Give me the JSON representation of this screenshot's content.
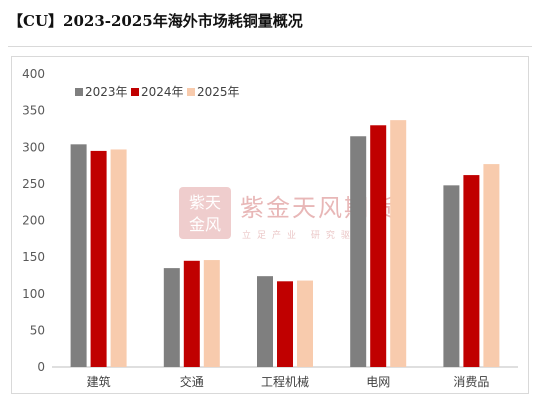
{
  "header": {
    "title": "【CU】2023-2025年海外市场耗铜量概况"
  },
  "watermark": {
    "name": "紫金天风期货",
    "slogan": "立足产业 研究驱动",
    "seal_top": "紫天",
    "seal_bottom": "金风"
  },
  "chart_data": {
    "type": "bar",
    "title": "【CU】2023-2025年海外市场耗铜量概况",
    "xlabel": "",
    "ylabel": "",
    "ylim": [
      0,
      400
    ],
    "yticks": [
      0,
      50,
      100,
      150,
      200,
      250,
      300,
      350,
      400
    ],
    "grid": false,
    "legend_position": "top-left",
    "categories": [
      "建筑",
      "交通",
      "工程机械",
      "电网",
      "消费品"
    ],
    "series": [
      {
        "name": "2023年",
        "color": "#7f7f7f",
        "values": [
          304,
          135,
          124,
          315,
          248
        ]
      },
      {
        "name": "2024年",
        "color": "#c00000",
        "values": [
          295,
          145,
          117,
          330,
          262
        ]
      },
      {
        "name": "2025年",
        "color": "#f8cbad",
        "values": [
          297,
          146,
          118,
          337,
          277
        ]
      }
    ]
  }
}
